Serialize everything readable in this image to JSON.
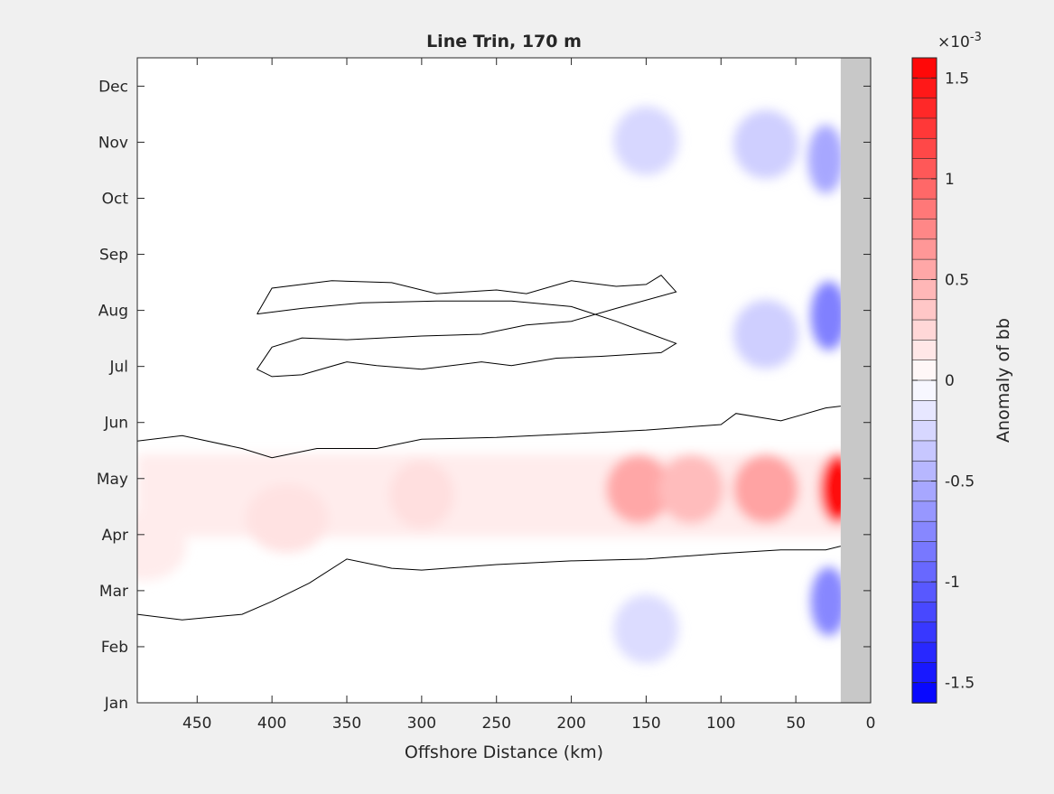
{
  "window": {
    "background_color": "#f0f0f0"
  },
  "chart_data": {
    "type": "heatmap",
    "title": "Line Trin, 170 m",
    "xlabel": "Offshore Distance (km)",
    "ylabel": "",
    "x_reversed": true,
    "xlim": [
      0,
      490
    ],
    "x_ticks": [
      450,
      400,
      350,
      300,
      250,
      200,
      150,
      100,
      50,
      0
    ],
    "y_tick_labels": [
      "Jan",
      "Feb",
      "Mar",
      "Apr",
      "May",
      "Jun",
      "Jul",
      "Aug",
      "Sep",
      "Oct",
      "Nov",
      "Dec"
    ],
    "ylim_days": [
      15,
      365
    ],
    "land_mask_x_max_km": 20,
    "land_color": "#c8c8c8",
    "colorbar": {
      "label": "Anomaly of bb",
      "exponent_label": "×10",
      "exponent_power": "-3",
      "range": [
        -0.0016,
        0.0016
      ],
      "ticks": [
        {
          "value": 0.0015,
          "label": "1.5"
        },
        {
          "value": 0.001,
          "label": "1"
        },
        {
          "value": 0.0005,
          "label": "0.5"
        },
        {
          "value": 0,
          "label": "0"
        },
        {
          "value": -0.0005,
          "label": "-0.5"
        },
        {
          "value": -0.001,
          "label": "-1"
        },
        {
          "value": -0.0015,
          "label": "-1.5"
        }
      ],
      "levels": 32,
      "max_color": "#ff0000",
      "min_color": "#0000ff",
      "zero_color": "#ffffff"
    },
    "features": [
      {
        "name": "spring positive anomaly",
        "x_km": 155,
        "day": 131,
        "value": 0.00055
      },
      {
        "name": "spring positive anomaly",
        "x_km": 120,
        "day": 131,
        "value": 0.00042
      },
      {
        "name": "spring positive anomaly",
        "x_km": 70,
        "day": 131,
        "value": 0.00058
      },
      {
        "name": "coastal spring maximum",
        "x_km": 22,
        "day": 131,
        "value": 0.00155
      },
      {
        "name": "broad spring anomaly",
        "x_km": 300,
        "day": 128,
        "value": 0.0002
      },
      {
        "name": "offshore spring anomaly",
        "x_km": 390,
        "day": 115,
        "value": 0.00018
      },
      {
        "name": "offshore spring anomaly",
        "x_km": 485,
        "day": 100,
        "value": 0.00012
      },
      {
        "name": "autumn negative anomaly",
        "x_km": 150,
        "day": 320,
        "value": -0.00025
      },
      {
        "name": "autumn negative anomaly",
        "x_km": 70,
        "day": 318,
        "value": -0.0003
      },
      {
        "name": "autumn negative anomaly",
        "x_km": 30,
        "day": 310,
        "value": -0.00055
      },
      {
        "name": "summer negative anomaly",
        "x_km": 28,
        "day": 225,
        "value": -0.0008
      },
      {
        "name": "summer negative anomaly",
        "x_km": 70,
        "day": 215,
        "value": -0.0003
      },
      {
        "name": "winter negative anomaly",
        "x_km": 28,
        "day": 70,
        "value": -0.00075
      },
      {
        "name": "winter negative anomaly",
        "x_km": 150,
        "day": 55,
        "value": -0.00022
      }
    ]
  }
}
